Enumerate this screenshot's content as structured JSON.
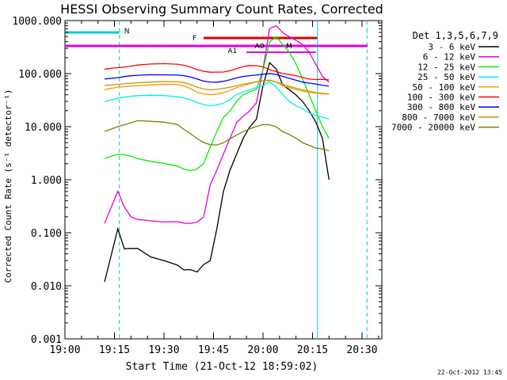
{
  "chart_data": {
    "type": "line",
    "title": "HESSI Observing Summary Count Rates, Corrected",
    "xlabel": "Start Time (21-Oct-12 18:59:02)",
    "ylabel": "Corrected Count Rate (s⁻¹ detector⁻¹)",
    "y_scale": "log",
    "xlim": [
      "19:00",
      "20:36"
    ],
    "ylim": [
      0.001,
      1000
    ],
    "x_tick_labels": [
      "19:00",
      "19:15",
      "19:30",
      "19:45",
      "20:00",
      "20:15",
      "20:30"
    ],
    "y_tick_labels": [
      "0.001",
      "0.010",
      "0.100",
      "1.000",
      "10.000",
      "100.000",
      "1000.000"
    ],
    "legend_title": "Det 1,3,5,6,7,9",
    "legend_position": "right",
    "x_minutes": [
      0,
      12,
      16,
      18,
      20,
      22,
      26,
      30,
      34,
      36,
      38,
      40,
      42,
      44,
      46,
      48,
      50,
      52,
      54,
      56,
      58,
      60,
      62,
      64,
      66,
      68,
      70,
      72,
      74,
      76,
      78,
      80,
      82,
      84
    ],
    "series": [
      {
        "name": "3 - 6 keV",
        "color": "#000000",
        "values": [
          null,
          0.012,
          0.12,
          0.05,
          0.05,
          0.05,
          0.035,
          0.03,
          0.025,
          0.02,
          0.02,
          0.018,
          0.025,
          0.03,
          0.12,
          0.6,
          1.5,
          3,
          6,
          10,
          14,
          60,
          160,
          120,
          60,
          50,
          40,
          30,
          20,
          12,
          6,
          1,
          null,
          null
        ]
      },
      {
        "name": "6 - 12 keV",
        "color": "#e000e0",
        "values": [
          null,
          0.15,
          0.6,
          0.3,
          0.2,
          0.18,
          0.17,
          0.16,
          0.16,
          0.15,
          0.15,
          0.16,
          0.2,
          0.8,
          1.5,
          3,
          6,
          12,
          16,
          20,
          28,
          120,
          700,
          800,
          600,
          500,
          420,
          350,
          250,
          150,
          90,
          70,
          null,
          null
        ]
      },
      {
        "name": "12 - 25 keV",
        "color": "#00ee00",
        "values": [
          null,
          2.5,
          3,
          3,
          2.8,
          2.5,
          2.2,
          2,
          1.8,
          1.6,
          1.5,
          1.6,
          2,
          4,
          8,
          15,
          20,
          30,
          40,
          45,
          50,
          120,
          400,
          500,
          350,
          250,
          150,
          80,
          40,
          20,
          10,
          6,
          null,
          null
        ]
      },
      {
        "name": "25 - 50 keV",
        "color": "#00eeee",
        "values": [
          null,
          30,
          35,
          36,
          37,
          38,
          39,
          39,
          37,
          35,
          32,
          28,
          26,
          25,
          26,
          28,
          32,
          40,
          45,
          50,
          55,
          60,
          70,
          55,
          40,
          30,
          25,
          22,
          18,
          16,
          15,
          14,
          null,
          null
        ]
      },
      {
        "name": "50 - 100 keV",
        "color": "#ff9900",
        "values": [
          null,
          50,
          55,
          56,
          58,
          60,
          62,
          63,
          62,
          58,
          52,
          45,
          42,
          40,
          41,
          43,
          48,
          55,
          60,
          65,
          70,
          72,
          75,
          70,
          60,
          55,
          50,
          46,
          44,
          43,
          42,
          42,
          null,
          null
        ]
      },
      {
        "name": "100 - 300 keV",
        "color": "#ff0000",
        "values": [
          null,
          120,
          130,
          135,
          140,
          145,
          150,
          152,
          150,
          145,
          135,
          120,
          110,
          105,
          106,
          108,
          115,
          125,
          135,
          140,
          140,
          135,
          120,
          110,
          100,
          95,
          90,
          85,
          80,
          78,
          78,
          75,
          null,
          null
        ]
      },
      {
        "name": "300 - 800 keV",
        "color": "#0000ff",
        "values": [
          null,
          80,
          85,
          88,
          90,
          92,
          95,
          96,
          95,
          92,
          86,
          78,
          72,
          70,
          70,
          72,
          76,
          82,
          88,
          92,
          95,
          98,
          100,
          95,
          88,
          82,
          76,
          70,
          66,
          63,
          60,
          58,
          null,
          null
        ]
      },
      {
        "name": "800 - 7000 keV",
        "color": "#c89600",
        "values": [
          null,
          60,
          62,
          64,
          66,
          68,
          70,
          71,
          70,
          67,
          62,
          56,
          52,
          50,
          50,
          52,
          55,
          60,
          64,
          67,
          70,
          72,
          74,
          70,
          64,
          58,
          53,
          49,
          46,
          44,
          43,
          42,
          null,
          null
        ]
      },
      {
        "name": "7000 - 20000 keV",
        "color": "#808000",
        "values": [
          null,
          8,
          10,
          11,
          12,
          13,
          12.5,
          12,
          11,
          9,
          7.5,
          6,
          5,
          4.5,
          4.5,
          5,
          6,
          7,
          8,
          9,
          10,
          11,
          11,
          10,
          8,
          7,
          6,
          5,
          4.5,
          4,
          3.8,
          3.5,
          null,
          null
        ]
      }
    ],
    "annotations": {
      "flag_labels": [
        "N",
        "F",
        "A0",
        "A1",
        "M"
      ],
      "timestamp": "22-Oct-2012 13:45"
    }
  }
}
